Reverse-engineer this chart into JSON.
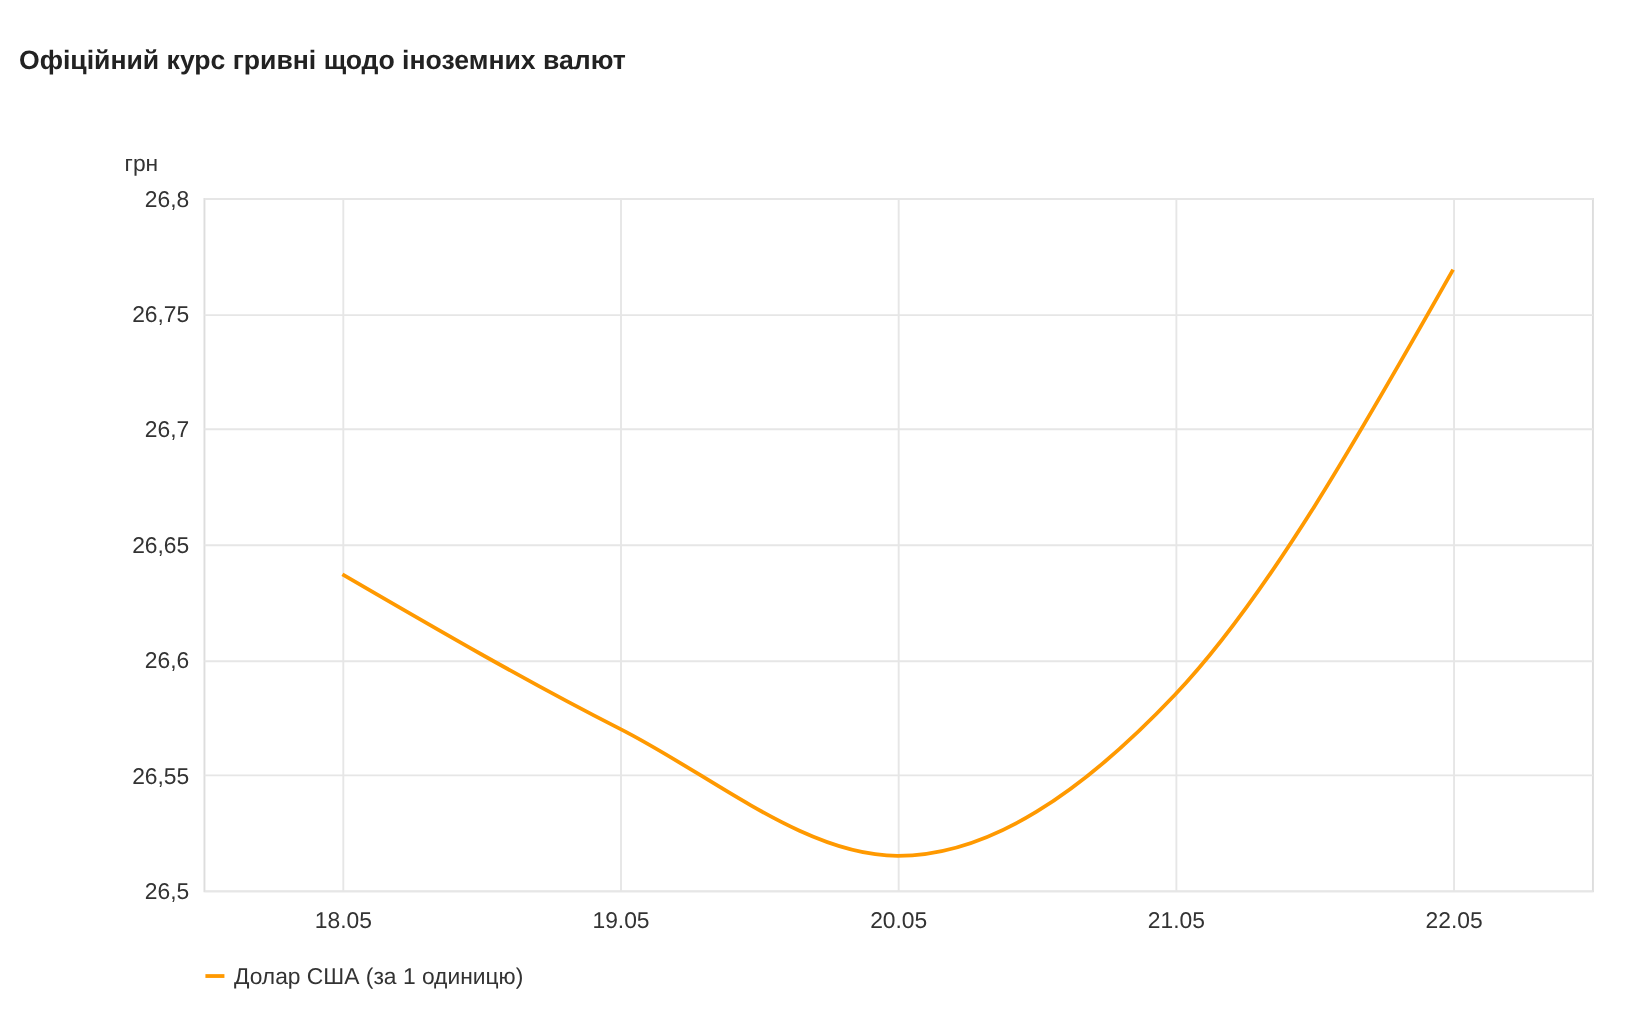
{
  "chart_data": {
    "type": "line",
    "title": "Офіційний курс гривні щодо іноземних валют",
    "ylabel": "грн",
    "categories": [
      "18.05",
      "19.05",
      "20.05",
      "21.05",
      "22.05"
    ],
    "series": [
      {
        "name": "Долар США (за 1 одиницю)",
        "color": "#ff9900",
        "values": [
          26.637,
          26.57,
          26.515,
          26.585,
          26.769
        ]
      }
    ],
    "ylim": [
      26.5,
      26.8
    ],
    "yticks": [
      {
        "value": 26.5,
        "label": "26,5"
      },
      {
        "value": 26.55,
        "label": "26,55"
      },
      {
        "value": 26.6,
        "label": "26,6"
      },
      {
        "value": 26.65,
        "label": "26,65"
      },
      {
        "value": 26.7,
        "label": "26,7"
      },
      {
        "value": 26.75,
        "label": "26,75"
      },
      {
        "value": 26.8,
        "label": "26,8"
      }
    ],
    "grid": true,
    "legend": "bottom",
    "marker": "none",
    "line_style": "solid"
  }
}
